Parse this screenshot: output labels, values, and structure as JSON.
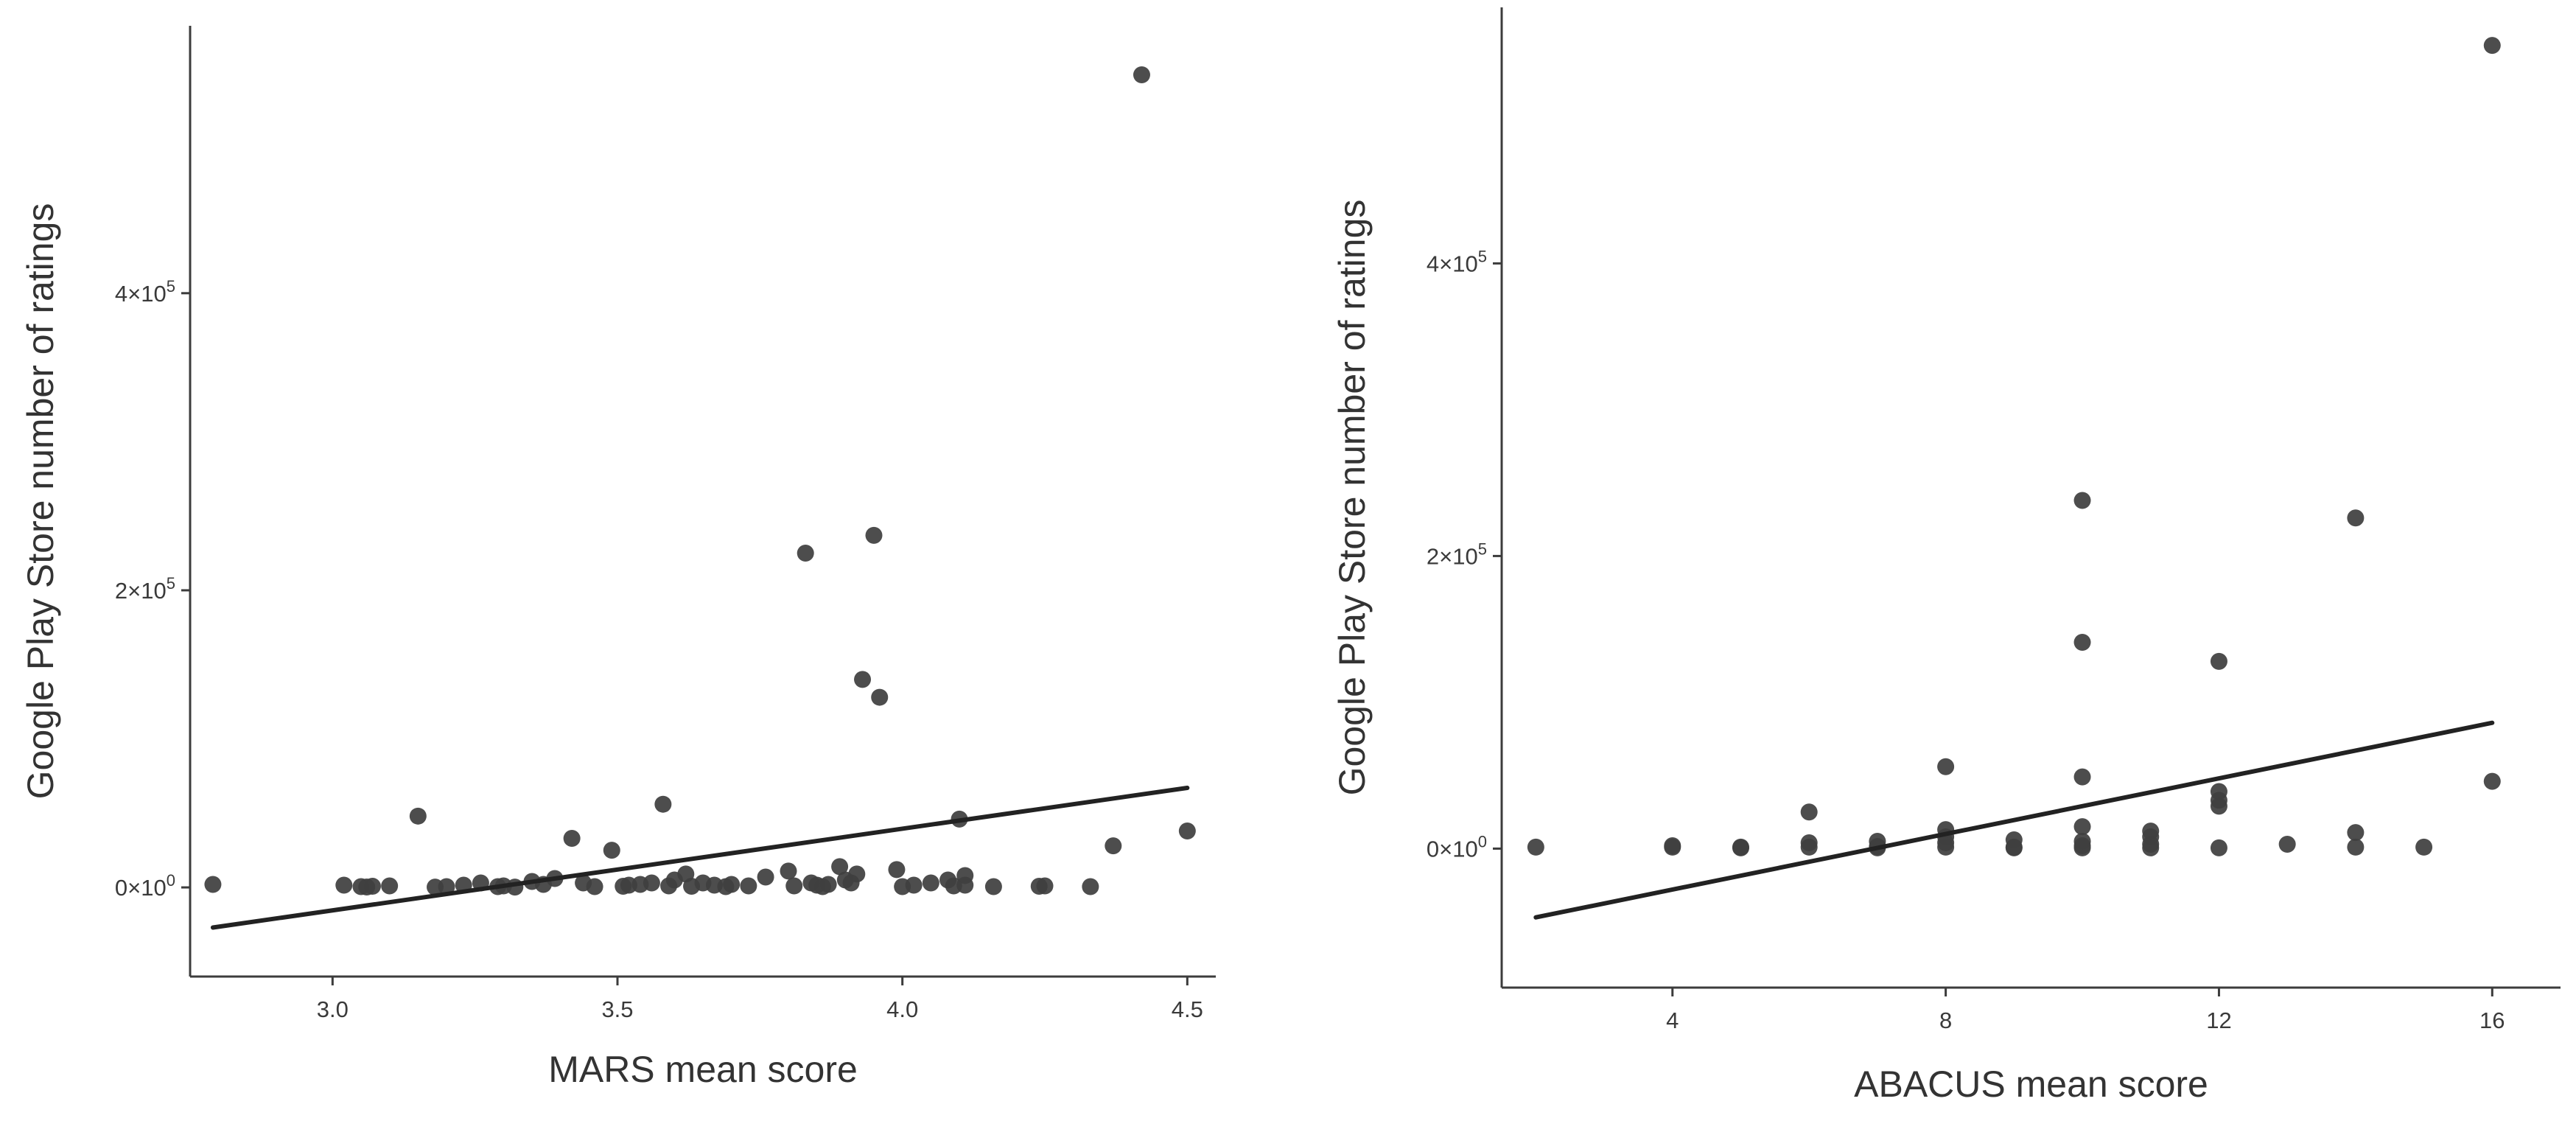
{
  "chart_data": [
    {
      "type": "scatter",
      "xlabel": "MARS mean score",
      "ylabel": "Google Play Store number of ratings",
      "xlim": [
        2.75,
        4.55
      ],
      "ylim": [
        -60000,
        580000
      ],
      "xticks": [
        {
          "value": 3.0,
          "label": "3.0"
        },
        {
          "value": 3.5,
          "label": "3.5"
        },
        {
          "value": 4.0,
          "label": "4.0"
        },
        {
          "value": 4.5,
          "label": "4.5"
        }
      ],
      "yticks": [
        {
          "value": 0,
          "base": "0×10",
          "exp": "0"
        },
        {
          "value": 200000,
          "base": "2×10",
          "exp": "5"
        },
        {
          "value": 400000,
          "base": "4×10",
          "exp": "5"
        }
      ],
      "grid": false,
      "trend": {
        "x": [
          2.79,
          4.5
        ],
        "y": [
          -27000,
          67000
        ]
      },
      "points": [
        [
          2.79,
          2000
        ],
        [
          3.02,
          1500
        ],
        [
          3.05,
          500
        ],
        [
          3.06,
          300
        ],
        [
          3.07,
          800
        ],
        [
          3.1,
          1000
        ],
        [
          3.15,
          48000
        ],
        [
          3.18,
          200
        ],
        [
          3.2,
          500
        ],
        [
          3.23,
          1500
        ],
        [
          3.26,
          3000
        ],
        [
          3.29,
          500
        ],
        [
          3.3,
          1000
        ],
        [
          3.32,
          200
        ],
        [
          3.35,
          4000
        ],
        [
          3.37,
          2000
        ],
        [
          3.39,
          6000
        ],
        [
          3.42,
          33000
        ],
        [
          3.44,
          3000
        ],
        [
          3.46,
          500
        ],
        [
          3.49,
          25000
        ],
        [
          3.51,
          800
        ],
        [
          3.52,
          1500
        ],
        [
          3.54,
          2000
        ],
        [
          3.56,
          3000
        ],
        [
          3.58,
          56000
        ],
        [
          3.59,
          1000
        ],
        [
          3.6,
          5000
        ],
        [
          3.62,
          9000
        ],
        [
          3.63,
          800
        ],
        [
          3.65,
          3000
        ],
        [
          3.67,
          1500
        ],
        [
          3.69,
          500
        ],
        [
          3.7,
          2000
        ],
        [
          3.73,
          1000
        ],
        [
          3.76,
          7000
        ],
        [
          3.8,
          11000
        ],
        [
          3.81,
          1000
        ],
        [
          3.83,
          225000
        ],
        [
          3.84,
          3000
        ],
        [
          3.85,
          1500
        ],
        [
          3.86,
          500
        ],
        [
          3.87,
          2000
        ],
        [
          3.89,
          14000
        ],
        [
          3.9,
          5000
        ],
        [
          3.91,
          3000
        ],
        [
          3.92,
          9000
        ],
        [
          3.93,
          140000
        ],
        [
          3.95,
          237000
        ],
        [
          3.96,
          128000
        ],
        [
          3.99,
          12000
        ],
        [
          4.0,
          500
        ],
        [
          4.02,
          1500
        ],
        [
          4.05,
          3000
        ],
        [
          4.08,
          5000
        ],
        [
          4.09,
          1000
        ],
        [
          4.1,
          46000
        ],
        [
          4.11,
          8000
        ],
        [
          4.11,
          1500
        ],
        [
          4.16,
          500
        ],
        [
          4.24,
          800
        ],
        [
          4.25,
          1000
        ],
        [
          4.33,
          500
        ],
        [
          4.37,
          28000
        ],
        [
          4.42,
          547000
        ],
        [
          4.5,
          38000
        ]
      ]
    },
    {
      "type": "scatter",
      "xlabel": "ABACUS mean score",
      "ylabel": "Google Play Store number of ratings",
      "xlim": [
        1.5,
        17
      ],
      "ylim": [
        -95000,
        575000
      ],
      "xticks": [
        {
          "value": 4,
          "label": "4"
        },
        {
          "value": 8,
          "label": "8"
        },
        {
          "value": 12,
          "label": "12"
        },
        {
          "value": 16,
          "label": "16"
        }
      ],
      "yticks": [
        {
          "value": 0,
          "base": "0×10",
          "exp": "0"
        },
        {
          "value": 200000,
          "base": "2×10",
          "exp": "5"
        },
        {
          "value": 400000,
          "base": "4×10",
          "exp": "5"
        }
      ],
      "grid": false,
      "trend": {
        "x": [
          2,
          16
        ],
        "y": [
          -47000,
          86000
        ]
      },
      "points": [
        [
          2,
          1000
        ],
        [
          4,
          1000
        ],
        [
          4,
          2000
        ],
        [
          5,
          500
        ],
        [
          5,
          1000
        ],
        [
          6,
          25000
        ],
        [
          6,
          4000
        ],
        [
          6,
          1000
        ],
        [
          7,
          5000
        ],
        [
          7,
          1500
        ],
        [
          7,
          500
        ],
        [
          8,
          56000
        ],
        [
          8,
          13000
        ],
        [
          8,
          8000
        ],
        [
          8,
          4000
        ],
        [
          8,
          1000
        ],
        [
          9,
          6000
        ],
        [
          9,
          1000
        ],
        [
          9,
          500
        ],
        [
          10,
          238000
        ],
        [
          10,
          141000
        ],
        [
          10,
          49000
        ],
        [
          10,
          15000
        ],
        [
          10,
          5000
        ],
        [
          10,
          2000
        ],
        [
          10,
          500
        ],
        [
          11,
          12000
        ],
        [
          11,
          8000
        ],
        [
          11,
          3000
        ],
        [
          11,
          500
        ],
        [
          12,
          128000
        ],
        [
          12,
          39000
        ],
        [
          12,
          33000
        ],
        [
          12,
          29000
        ],
        [
          12,
          500
        ],
        [
          13,
          3000
        ],
        [
          14,
          226000
        ],
        [
          14,
          11000
        ],
        [
          14,
          1000
        ],
        [
          15,
          1000
        ],
        [
          16,
          549000
        ],
        [
          16,
          46000
        ]
      ]
    }
  ]
}
